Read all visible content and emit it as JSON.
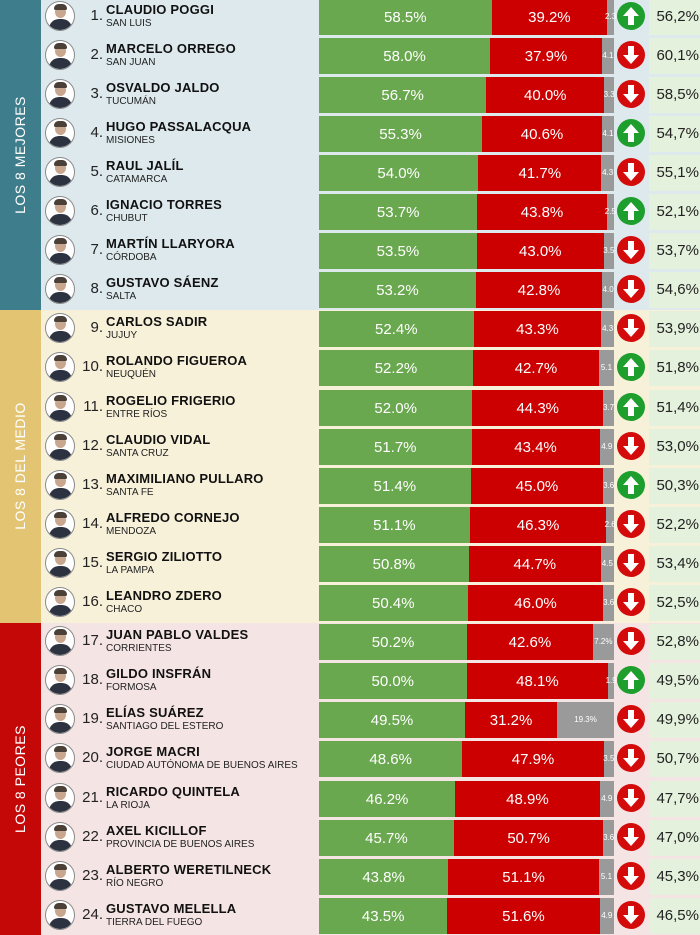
{
  "colors": {
    "positive": "#6aa84f",
    "negative": "#cc0000",
    "ns_nc": "#9a9a9a",
    "trend_up": "#1e9e2c",
    "trend_down": "#d40b0b",
    "previous_bg": "#e4f1dc"
  },
  "groups": [
    {
      "label": "LOS 8 MEJORES",
      "from_rank": 1,
      "to_rank": 8,
      "side_color": "#3e7e8c",
      "band_color": "#dde9ed"
    },
    {
      "label": "LOS 8 DEL MEDIO",
      "from_rank": 9,
      "to_rank": 16,
      "side_color": "#e3c473",
      "band_color": "#f7f1da"
    },
    {
      "label": "LOS 8 PEORES",
      "from_rank": 17,
      "to_rank": 24,
      "side_color": "#c40808",
      "band_color": "#f5e4e4"
    }
  ],
  "chart_data": {
    "type": "bar",
    "stacked": true,
    "orientation": "horizontal",
    "xlim": [
      0,
      100
    ],
    "series": [
      {
        "key": "positive",
        "color": "#6aa84f"
      },
      {
        "key": "negative",
        "color": "#cc0000"
      },
      {
        "key": "ns_nc",
        "color": "#9a9a9a"
      }
    ],
    "rows": [
      {
        "rank_label": "1.",
        "name": "CLAUDIO POGGI",
        "province": "SAN LUIS",
        "positive": 58.5,
        "negative": 39.2,
        "ns_nc": 2.3,
        "positive_label": "58.5%",
        "negative_label": "39.2%",
        "ns_nc_label": "2.3",
        "trend": "up",
        "previous_label": "56,2%"
      },
      {
        "rank_label": "2.",
        "name": "MARCELO ORREGO",
        "province": "SAN JUAN",
        "positive": 58.0,
        "negative": 37.9,
        "ns_nc": 4.1,
        "positive_label": "58.0%",
        "negative_label": "37.9%",
        "ns_nc_label": "4.1",
        "trend": "down",
        "previous_label": "60,1%"
      },
      {
        "rank_label": "3.",
        "name": "OSVALDO JALDO",
        "province": "TUCUMÁN",
        "positive": 56.7,
        "negative": 40.0,
        "ns_nc": 3.3,
        "positive_label": "56.7%",
        "negative_label": "40.0%",
        "ns_nc_label": "3.3",
        "trend": "down",
        "previous_label": "58,5%"
      },
      {
        "rank_label": "4.",
        "name": "HUGO PASSALACQUA",
        "province": "MISIONES",
        "positive": 55.3,
        "negative": 40.6,
        "ns_nc": 4.1,
        "positive_label": "55.3%",
        "negative_label": "40.6%",
        "ns_nc_label": "4.1",
        "trend": "up",
        "previous_label": "54,7%"
      },
      {
        "rank_label": "5.",
        "name": "RAUL JALÍL",
        "province": "CATAMARCA",
        "positive": 54.0,
        "negative": 41.7,
        "ns_nc": 4.3,
        "positive_label": "54.0%",
        "negative_label": "41.7%",
        "ns_nc_label": "4.3",
        "trend": "down",
        "previous_label": "55,1%"
      },
      {
        "rank_label": "6.",
        "name": "IGNACIO TORRES",
        "province": "CHUBUT",
        "positive": 53.7,
        "negative": 43.8,
        "ns_nc": 2.5,
        "positive_label": "53.7%",
        "negative_label": "43.8%",
        "ns_nc_label": "2.5",
        "trend": "up",
        "previous_label": "52,1%"
      },
      {
        "rank_label": "7.",
        "name": "MARTÍN LLARYORA",
        "province": "CÓRDOBA",
        "positive": 53.5,
        "negative": 43.0,
        "ns_nc": 3.5,
        "positive_label": "53.5%",
        "negative_label": "43.0%",
        "ns_nc_label": "3.5",
        "trend": "down",
        "previous_label": "53,7%"
      },
      {
        "rank_label": "8.",
        "name": "GUSTAVO SÁENZ",
        "province": "SALTA",
        "positive": 53.2,
        "negative": 42.8,
        "ns_nc": 4.0,
        "positive_label": "53.2%",
        "negative_label": "42.8%",
        "ns_nc_label": "4.0",
        "trend": "down",
        "previous_label": "54,6%"
      },
      {
        "rank_label": "9.",
        "name": "CARLOS SADIR",
        "province": "JUJUY",
        "positive": 52.4,
        "negative": 43.3,
        "ns_nc": 4.3,
        "positive_label": "52.4%",
        "negative_label": "43.3%",
        "ns_nc_label": "4.3",
        "trend": "down",
        "previous_label": "53,9%"
      },
      {
        "rank_label": "10.",
        "name": "ROLANDO FIGUEROA",
        "province": "NEUQUÉN",
        "positive": 52.2,
        "negative": 42.7,
        "ns_nc": 5.1,
        "positive_label": "52.2%",
        "negative_label": "42.7%",
        "ns_nc_label": "5.1",
        "trend": "up",
        "previous_label": "51,8%"
      },
      {
        "rank_label": "11.",
        "name": "ROGELIO FRIGERIO",
        "province": "ENTRE RÍOS",
        "positive": 52.0,
        "negative": 44.3,
        "ns_nc": 3.7,
        "positive_label": "52.0%",
        "negative_label": "44.3%",
        "ns_nc_label": "3.7",
        "trend": "up",
        "previous_label": "51,4%"
      },
      {
        "rank_label": "12.",
        "name": "CLAUDIO VIDAL",
        "province": "SANTA CRUZ",
        "positive": 51.7,
        "negative": 43.4,
        "ns_nc": 4.9,
        "positive_label": "51.7%",
        "negative_label": "43.4%",
        "ns_nc_label": "4.9",
        "trend": "down",
        "previous_label": "53,0%"
      },
      {
        "rank_label": "13.",
        "name": "MAXIMILIANO PULLARO",
        "province": "SANTA FE",
        "positive": 51.4,
        "negative": 45.0,
        "ns_nc": 3.6,
        "positive_label": "51.4%",
        "negative_label": "45.0%",
        "ns_nc_label": "3.6",
        "trend": "up",
        "previous_label": "50,3%"
      },
      {
        "rank_label": "14.",
        "name": "ALFREDO CORNEJO",
        "province": "MENDOZA",
        "positive": 51.1,
        "negative": 46.3,
        "ns_nc": 2.6,
        "positive_label": "51.1%",
        "negative_label": "46.3%",
        "ns_nc_label": "2.6",
        "trend": "down",
        "previous_label": "52,2%"
      },
      {
        "rank_label": "15.",
        "name": "SERGIO ZILIOTTO",
        "province": "LA PAMPA",
        "positive": 50.8,
        "negative": 44.7,
        "ns_nc": 4.5,
        "positive_label": "50.8%",
        "negative_label": "44.7%",
        "ns_nc_label": "4.5",
        "trend": "down",
        "previous_label": "53,4%"
      },
      {
        "rank_label": "16.",
        "name": "LEANDRO ZDERO",
        "province": "CHACO",
        "positive": 50.4,
        "negative": 46.0,
        "ns_nc": 3.6,
        "positive_label": "50.4%",
        "negative_label": "46.0%",
        "ns_nc_label": "3.6",
        "trend": "down",
        "previous_label": "52,5%"
      },
      {
        "rank_label": "17.",
        "name": "JUAN PABLO VALDES",
        "province": "CORRIENTES",
        "positive": 50.2,
        "negative": 42.6,
        "ns_nc": 7.2,
        "positive_label": "50.2%",
        "negative_label": "42.6%",
        "ns_nc_label": "7.2%",
        "trend": "down",
        "previous_label": "52,8%"
      },
      {
        "rank_label": "18.",
        "name": "GILDO INSFRÁN",
        "province": "FORMOSA",
        "positive": 50.0,
        "negative": 48.1,
        "ns_nc": 1.9,
        "positive_label": "50.0%",
        "negative_label": "48.1%",
        "ns_nc_label": "1.9",
        "trend": "up",
        "previous_label": "49,5%"
      },
      {
        "rank_label": "19.",
        "name": "ELÍAS SUÁREZ",
        "province": "SANTIAGO DEL ESTERO",
        "positive": 49.5,
        "negative": 31.2,
        "ns_nc": 19.3,
        "positive_label": "49.5%",
        "negative_label": "31.2%",
        "ns_nc_label": "19.3%",
        "trend": "down",
        "previous_label": "49,9%"
      },
      {
        "rank_label": "20.",
        "name": "JORGE MACRI",
        "province": "CIUDAD AUTÓNOMA DE BUENOS AIRES",
        "positive": 48.6,
        "negative": 47.9,
        "ns_nc": 3.5,
        "positive_label": "48.6%",
        "negative_label": "47.9%",
        "ns_nc_label": "3.5",
        "trend": "down",
        "previous_label": "50,7%"
      },
      {
        "rank_label": "21.",
        "name": "RICARDO QUINTELA",
        "province": "LA RIOJA",
        "positive": 46.2,
        "negative": 48.9,
        "ns_nc": 4.9,
        "positive_label": "46.2%",
        "negative_label": "48.9%",
        "ns_nc_label": "4.9",
        "trend": "down",
        "previous_label": "47,7%"
      },
      {
        "rank_label": "22.",
        "name": "AXEL KICILLOF",
        "province": "PROVINCIA DE BUENOS AIRES",
        "positive": 45.7,
        "negative": 50.7,
        "ns_nc": 3.6,
        "positive_label": "45.7%",
        "negative_label": "50.7%",
        "ns_nc_label": "3.6",
        "trend": "down",
        "previous_label": "47,0%"
      },
      {
        "rank_label": "23.",
        "name": "ALBERTO WERETILNECK",
        "province": "RÍO NEGRO",
        "positive": 43.8,
        "negative": 51.1,
        "ns_nc": 5.1,
        "positive_label": "43.8%",
        "negative_label": "51.1%",
        "ns_nc_label": "5.1",
        "trend": "down",
        "previous_label": "45,3%"
      },
      {
        "rank_label": "24.",
        "name": "GUSTAVO MELELLA",
        "province": "TIERRA DEL FUEGO",
        "positive": 43.5,
        "negative": 51.6,
        "ns_nc": 4.9,
        "positive_label": "43.5%",
        "negative_label": "51.6%",
        "ns_nc_label": "4.9",
        "trend": "down",
        "previous_label": "46,5%"
      }
    ]
  }
}
